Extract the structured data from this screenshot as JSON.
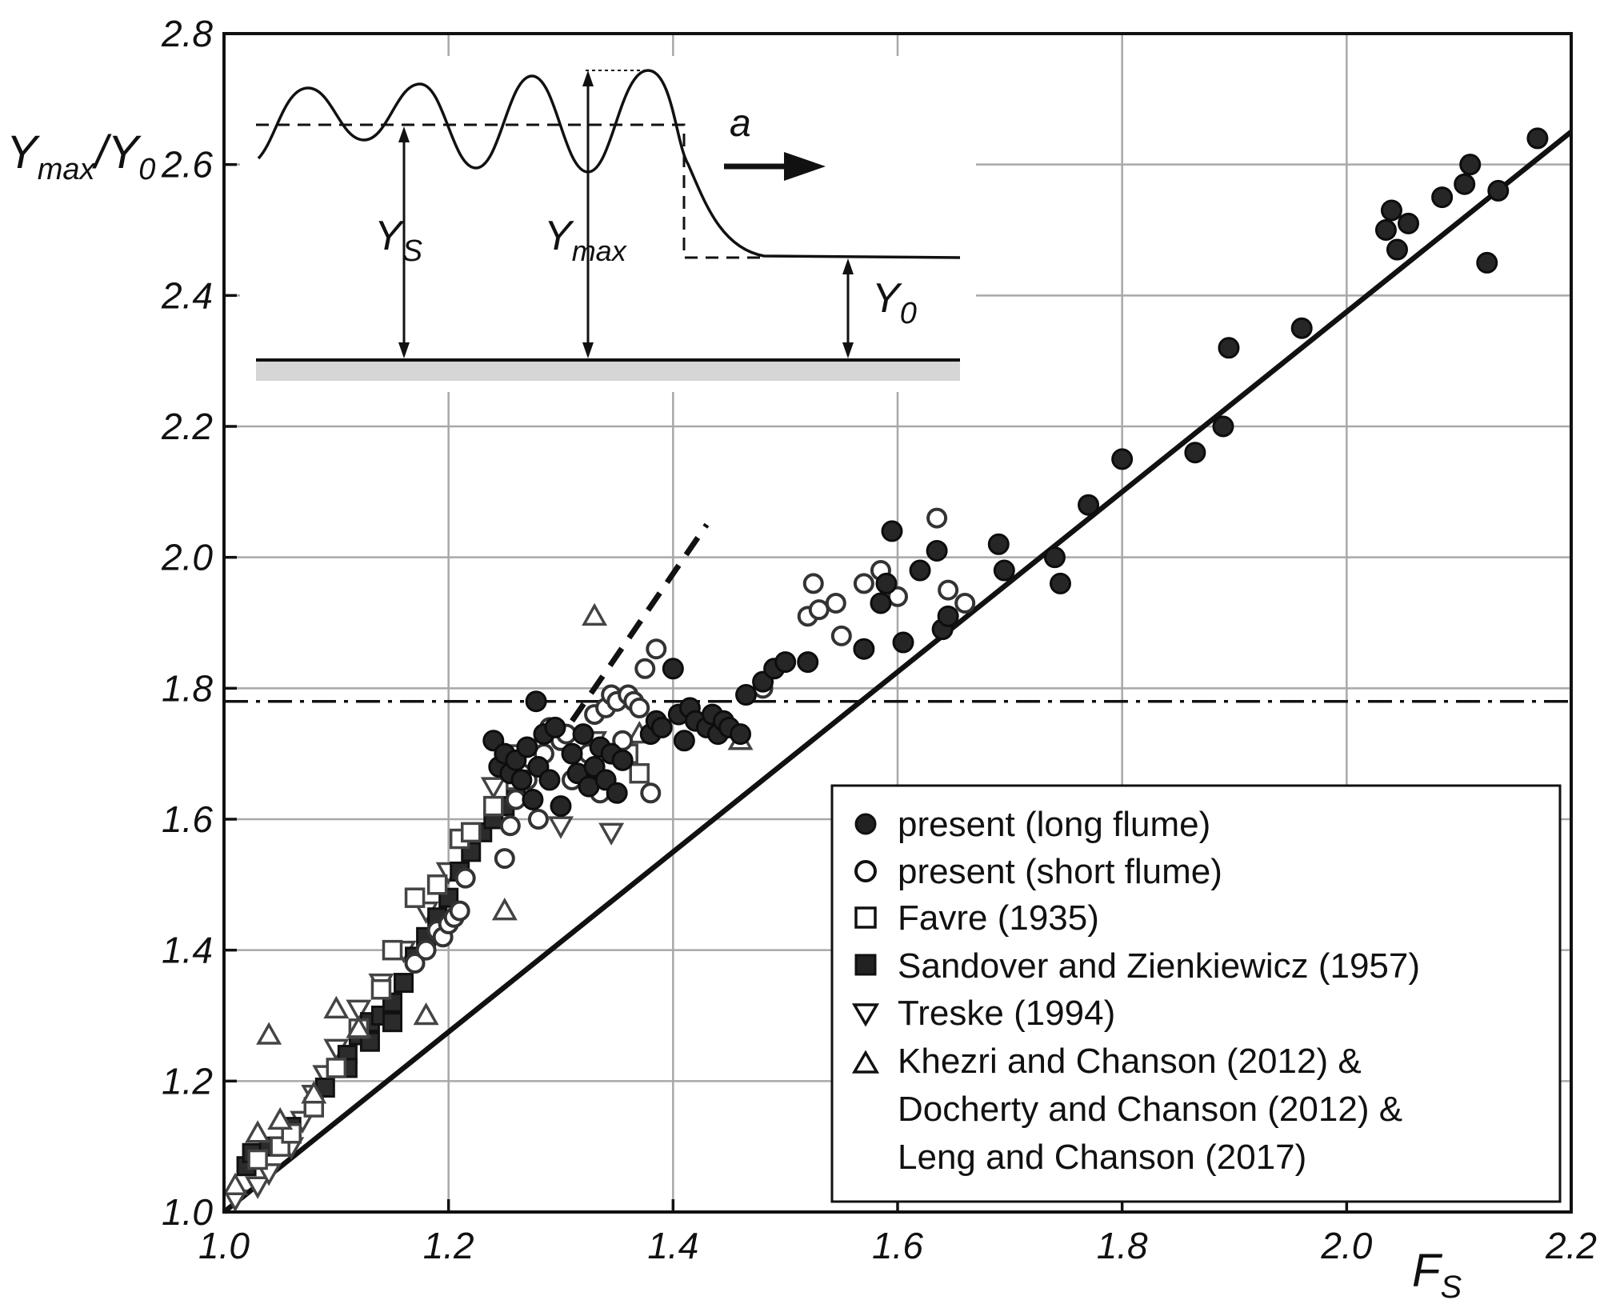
{
  "chart_data": {
    "type": "scatter",
    "title": "",
    "xlabel_main": "F",
    "xlabel_sub": "S",
    "ylabel_parts": [
      "Y",
      "max",
      "/Y",
      "0"
    ],
    "xlim": [
      1.0,
      2.2
    ],
    "ylim": [
      1.0,
      2.8
    ],
    "grid": true,
    "x_ticks": [
      1.0,
      1.2,
      1.4,
      1.6,
      1.8,
      2.0,
      2.2
    ],
    "x_tick_labels": [
      "1.0",
      "1.2",
      "1.4",
      "1.6",
      "1.8",
      "2.0",
      "2.2"
    ],
    "y_ticks": [
      1.0,
      1.2,
      1.4,
      1.6,
      1.8,
      2.0,
      2.2,
      2.4,
      2.6,
      2.8
    ],
    "y_tick_labels": [
      "1.0",
      "1.2",
      "1.4",
      "1.6",
      "1.8",
      "2.0",
      "2.2",
      "2.4",
      "2.6",
      "2.8"
    ],
    "lines": [
      {
        "name": "solid-line",
        "style": "solid",
        "points": [
          [
            1.0,
            1.0
          ],
          [
            2.2,
            2.65
          ]
        ]
      },
      {
        "name": "dashed-line",
        "style": "dashed",
        "points": [
          [
            1.31,
            1.75
          ],
          [
            1.43,
            2.05
          ]
        ]
      },
      {
        "name": "dash-dot-line",
        "style": "dashdot",
        "points": [
          [
            1.0,
            1.78
          ],
          [
            2.2,
            1.78
          ]
        ]
      }
    ],
    "series": [
      {
        "name": "present (long flume)",
        "marker": "filled-circle",
        "points": [
          [
            1.24,
            1.72
          ],
          [
            1.245,
            1.68
          ],
          [
            1.25,
            1.7
          ],
          [
            1.255,
            1.67
          ],
          [
            1.26,
            1.69
          ],
          [
            1.265,
            1.66
          ],
          [
            1.27,
            1.71
          ],
          [
            1.275,
            1.63
          ],
          [
            1.28,
            1.68
          ],
          [
            1.278,
            1.78
          ],
          [
            1.285,
            1.73
          ],
          [
            1.29,
            1.66
          ],
          [
            1.295,
            1.74
          ],
          [
            1.3,
            1.62
          ],
          [
            1.31,
            1.7
          ],
          [
            1.315,
            1.67
          ],
          [
            1.32,
            1.73
          ],
          [
            1.325,
            1.65
          ],
          [
            1.33,
            1.68
          ],
          [
            1.335,
            1.71
          ],
          [
            1.34,
            1.66
          ],
          [
            1.345,
            1.7
          ],
          [
            1.35,
            1.64
          ],
          [
            1.355,
            1.69
          ],
          [
            1.38,
            1.73
          ],
          [
            1.385,
            1.75
          ],
          [
            1.39,
            1.74
          ],
          [
            1.4,
            1.83
          ],
          [
            1.405,
            1.76
          ],
          [
            1.41,
            1.72
          ],
          [
            1.415,
            1.77
          ],
          [
            1.42,
            1.75
          ],
          [
            1.43,
            1.74
          ],
          [
            1.435,
            1.76
          ],
          [
            1.44,
            1.73
          ],
          [
            1.445,
            1.75
          ],
          [
            1.45,
            1.74
          ],
          [
            1.46,
            1.73
          ],
          [
            1.465,
            1.79
          ],
          [
            1.48,
            1.81
          ],
          [
            1.49,
            1.83
          ],
          [
            1.5,
            1.84
          ],
          [
            1.52,
            1.84
          ],
          [
            1.57,
            1.86
          ],
          [
            1.585,
            1.93
          ],
          [
            1.59,
            1.96
          ],
          [
            1.595,
            2.04
          ],
          [
            1.605,
            1.87
          ],
          [
            1.62,
            1.98
          ],
          [
            1.635,
            2.01
          ],
          [
            1.64,
            1.89
          ],
          [
            1.645,
            1.91
          ],
          [
            1.69,
            2.02
          ],
          [
            1.695,
            1.98
          ],
          [
            1.74,
            2.0
          ],
          [
            1.745,
            1.96
          ],
          [
            1.77,
            2.08
          ],
          [
            1.8,
            2.15
          ],
          [
            1.865,
            2.16
          ],
          [
            1.89,
            2.2
          ],
          [
            1.895,
            2.32
          ],
          [
            1.96,
            2.35
          ],
          [
            2.035,
            2.5
          ],
          [
            2.04,
            2.53
          ],
          [
            2.045,
            2.47
          ],
          [
            2.055,
            2.51
          ],
          [
            2.085,
            2.55
          ],
          [
            2.105,
            2.57
          ],
          [
            2.11,
            2.6
          ],
          [
            2.125,
            2.45
          ],
          [
            2.135,
            2.56
          ],
          [
            2.17,
            2.64
          ]
        ]
      },
      {
        "name": "present (short flume)",
        "marker": "open-circle",
        "points": [
          [
            1.17,
            1.38
          ],
          [
            1.18,
            1.4
          ],
          [
            1.19,
            1.43
          ],
          [
            1.195,
            1.42
          ],
          [
            1.2,
            1.44
          ],
          [
            1.205,
            1.45
          ],
          [
            1.21,
            1.46
          ],
          [
            1.215,
            1.51
          ],
          [
            1.25,
            1.54
          ],
          [
            1.255,
            1.59
          ],
          [
            1.26,
            1.63
          ],
          [
            1.265,
            1.67
          ],
          [
            1.27,
            1.66
          ],
          [
            1.28,
            1.6
          ],
          [
            1.285,
            1.7
          ],
          [
            1.29,
            1.74
          ],
          [
            1.3,
            1.72
          ],
          [
            1.305,
            1.73
          ],
          [
            1.31,
            1.66
          ],
          [
            1.32,
            1.68
          ],
          [
            1.325,
            1.7
          ],
          [
            1.33,
            1.76
          ],
          [
            1.335,
            1.64
          ],
          [
            1.34,
            1.77
          ],
          [
            1.345,
            1.79
          ],
          [
            1.35,
            1.78
          ],
          [
            1.355,
            1.72
          ],
          [
            1.36,
            1.79
          ],
          [
            1.365,
            1.78
          ],
          [
            1.37,
            1.77
          ],
          [
            1.375,
            1.83
          ],
          [
            1.38,
            1.64
          ],
          [
            1.385,
            1.86
          ],
          [
            1.48,
            1.8
          ],
          [
            1.52,
            1.91
          ],
          [
            1.525,
            1.96
          ],
          [
            1.53,
            1.92
          ],
          [
            1.545,
            1.93
          ],
          [
            1.55,
            1.88
          ],
          [
            1.57,
            1.96
          ],
          [
            1.585,
            1.98
          ],
          [
            1.6,
            1.94
          ],
          [
            1.635,
            2.06
          ],
          [
            1.645,
            1.95
          ],
          [
            1.66,
            1.93
          ]
        ]
      },
      {
        "name": "Favre (1935)",
        "marker": "open-square",
        "points": [
          [
            1.03,
            1.08
          ],
          [
            1.05,
            1.1
          ],
          [
            1.06,
            1.12
          ],
          [
            1.08,
            1.16
          ],
          [
            1.1,
            1.22
          ],
          [
            1.12,
            1.28
          ],
          [
            1.14,
            1.34
          ],
          [
            1.15,
            1.4
          ],
          [
            1.17,
            1.48
          ],
          [
            1.19,
            1.5
          ],
          [
            1.21,
            1.57
          ],
          [
            1.22,
            1.58
          ],
          [
            1.24,
            1.62
          ],
          [
            1.26,
            1.66
          ],
          [
            1.36,
            1.7
          ],
          [
            1.37,
            1.67
          ]
        ]
      },
      {
        "name": "Sandover and Zienkiewicz (1957)",
        "marker": "filled-square",
        "points": [
          [
            1.02,
            1.07
          ],
          [
            1.025,
            1.09
          ],
          [
            1.04,
            1.1
          ],
          [
            1.06,
            1.13
          ],
          [
            1.08,
            1.16
          ],
          [
            1.09,
            1.19
          ],
          [
            1.1,
            1.22
          ],
          [
            1.11,
            1.24
          ],
          [
            1.12,
            1.27
          ],
          [
            1.13,
            1.29
          ],
          [
            1.14,
            1.3
          ],
          [
            1.15,
            1.32
          ],
          [
            1.16,
            1.35
          ],
          [
            1.17,
            1.39
          ],
          [
            1.18,
            1.42
          ],
          [
            1.19,
            1.45
          ],
          [
            1.2,
            1.48
          ],
          [
            1.21,
            1.52
          ],
          [
            1.22,
            1.55
          ],
          [
            1.23,
            1.58
          ],
          [
            1.24,
            1.6
          ],
          [
            1.25,
            1.62
          ],
          [
            1.26,
            1.65
          ],
          [
            1.11,
            1.22
          ],
          [
            1.13,
            1.26
          ],
          [
            1.15,
            1.29
          ]
        ]
      },
      {
        "name": "Treske (1994)",
        "marker": "open-triangle-down",
        "points": [
          [
            1.01,
            1.02
          ],
          [
            1.03,
            1.04
          ],
          [
            1.04,
            1.06
          ],
          [
            1.06,
            1.1
          ],
          [
            1.07,
            1.14
          ],
          [
            1.08,
            1.18
          ],
          [
            1.09,
            1.21
          ],
          [
            1.1,
            1.25
          ],
          [
            1.12,
            1.31
          ],
          [
            1.14,
            1.35
          ],
          [
            1.16,
            1.4
          ],
          [
            1.18,
            1.46
          ],
          [
            1.2,
            1.52
          ],
          [
            1.22,
            1.56
          ],
          [
            1.24,
            1.65
          ],
          [
            1.26,
            1.7
          ],
          [
            1.3,
            1.59
          ],
          [
            1.345,
            1.58
          ],
          [
            1.33,
            1.72
          ]
        ]
      },
      {
        "name": "Khezri and Chanson (2012) & Docherty and Chanson (2012) & Leng and Chanson (2017)",
        "marker": "open-triangle-up",
        "points": [
          [
            1.01,
            1.04
          ],
          [
            1.03,
            1.12
          ],
          [
            1.05,
            1.14
          ],
          [
            1.04,
            1.27
          ],
          [
            1.08,
            1.18
          ],
          [
            1.1,
            1.31
          ],
          [
            1.12,
            1.28
          ],
          [
            1.18,
            1.3
          ],
          [
            1.25,
            1.46
          ],
          [
            1.33,
            1.91
          ],
          [
            1.37,
            1.73
          ],
          [
            1.45,
            1.74
          ],
          [
            1.46,
            1.72
          ]
        ]
      }
    ],
    "legend": {
      "placement": "bottom-right",
      "labels": [
        "present (long flume)",
        "present (short flume)",
        "Favre (1935)",
        "Sandover and Zienkiewicz (1957)",
        "Treske (1994)",
        "Khezri and Chanson (2012) &",
        "Docherty and Chanson (2012) &",
        "Leng and Chanson (2017)"
      ]
    },
    "inset": {
      "labels": {
        "a": "a",
        "ys_main": "Y",
        "ys_sub": "S",
        "ymax_main": "Y",
        "ymax_sub": "max",
        "y0_main": "Y",
        "y0_sub": "0"
      }
    }
  }
}
